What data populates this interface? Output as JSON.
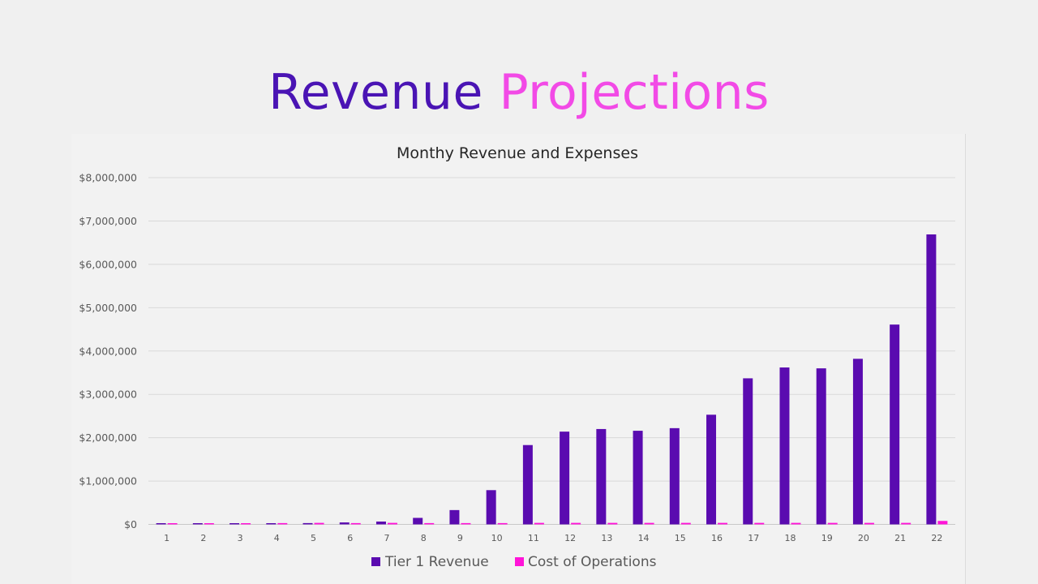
{
  "slide": {
    "title_word1": "Revenue",
    "title_word2": "Projections"
  },
  "colors": {
    "title_primary": "#4a14b4",
    "title_accent": "#f24ae6",
    "series_revenue": "#5a0bb0",
    "series_cost": "#ff14d8",
    "gridline": "#d9d9d9",
    "tick_text": "#595959"
  },
  "chart_data": {
    "type": "bar",
    "title": "Monthy Revenue and Expenses",
    "xlabel": "",
    "ylabel": "",
    "ylim": [
      0,
      8000000
    ],
    "y_ticks": [
      0,
      1000000,
      2000000,
      3000000,
      4000000,
      5000000,
      6000000,
      7000000,
      8000000
    ],
    "y_tick_labels": [
      "$0",
      "$1,000,000",
      "$2,000,000",
      "$3,000,000",
      "$4,000,000",
      "$5,000,000",
      "$6,000,000",
      "$7,000,000",
      "$8,000,000"
    ],
    "grid": true,
    "legend_position": "bottom",
    "categories": [
      "1",
      "2",
      "3",
      "4",
      "5",
      "6",
      "7",
      "8",
      "9",
      "10",
      "11",
      "12",
      "13",
      "14",
      "15",
      "16",
      "17",
      "18",
      "19",
      "20",
      "21",
      "22"
    ],
    "series": [
      {
        "name": "Tier 1 Revenue",
        "color": "#5a0bb0",
        "values": [
          2000,
          5000,
          10000,
          20000,
          30000,
          45000,
          65000,
          150000,
          330000,
          790000,
          1830000,
          2140000,
          2200000,
          2160000,
          2220000,
          2530000,
          3370000,
          3620000,
          3600000,
          3820000,
          4610000,
          6690000
        ]
      },
      {
        "name": "Cost of Operations",
        "color": "#ff14d8",
        "values": [
          15000,
          15000,
          20000,
          30000,
          35000,
          30000,
          35000,
          30000,
          30000,
          30000,
          35000,
          35000,
          35000,
          35000,
          35000,
          35000,
          35000,
          35000,
          35000,
          35000,
          35000,
          80000
        ]
      }
    ]
  }
}
